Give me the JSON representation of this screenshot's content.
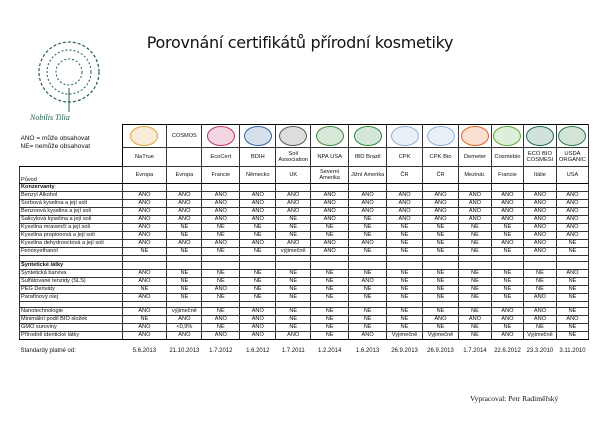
{
  "title": "Porovnání certifikátů přírodní kosmetiky",
  "logo": {
    "text": "Nobilis Tilia",
    "icon": "tree-logo",
    "color": "#1f5e4e"
  },
  "legend": [
    "ANO = může obsahovat",
    "NE= nemůže obsahovat"
  ],
  "certs": [
    {
      "name": "NaTrue",
      "origin": "Evropa",
      "icon": "natrue-logo",
      "color": "#e0a040",
      "date": "5.6.2013"
    },
    {
      "name": "",
      "logo_text": "COSMOS",
      "origin": "Evropa",
      "icon": "cosmos-logo",
      "color": "#ffffff",
      "date": "21.10.2013"
    },
    {
      "name": "EcoCert",
      "origin": "Francie",
      "icon": "ecocert-logo",
      "color": "#c0306a",
      "date": "1.7.2012"
    },
    {
      "name": "BDIH",
      "origin": "Německo",
      "icon": "bdih-logo",
      "color": "#3060a0",
      "date": "1.6.2012"
    },
    {
      "name": "Soil Association",
      "origin": "UK",
      "icon": "soil-association-logo",
      "color": "#555555",
      "date": "1.7.2011"
    },
    {
      "name": "NPA USA",
      "origin": "Severní Amerika",
      "icon": "npa-logo",
      "color": "#3a8a3a",
      "date": "1.2.2014"
    },
    {
      "name": "IBD Brazil",
      "origin": "Jižní Amerika",
      "icon": "ibd-logo",
      "color": "#2a8a3a",
      "date": "1.6.2013"
    },
    {
      "name": "CPK",
      "origin": "ČR",
      "icon": "cpk-logo",
      "color": "#8ab0d8",
      "date": "26.9.2013"
    },
    {
      "name": "CPK Bio",
      "origin": "ČR",
      "icon": "cpk-bio-logo",
      "color": "#8ab0d8",
      "date": "26.9.2013"
    },
    {
      "name": "Demeter",
      "origin": "Mezinár.",
      "icon": "demeter-logo",
      "color": "#e06020",
      "date": "1.7.2014"
    },
    {
      "name": "Cosmebio",
      "origin": "Francie",
      "icon": "cosmebio-logo",
      "color": "#5aaa3a",
      "date": "22.6.2012"
    },
    {
      "name": "ECO BIO COSMESI",
      "origin": "Itálie",
      "icon": "ecobio-cosmesi-logo",
      "color": "#1a6a4a",
      "date": "23.3.2010"
    },
    {
      "name": "USDA ORGANIC",
      "origin": "USA",
      "icon": "usda-organic-logo",
      "color": "#2a7a3a",
      "date": "3.11.2010"
    }
  ],
  "origin_label": "Původ",
  "sections": [
    {
      "title": "Konzervanty",
      "rows": [
        {
          "label": "Benzyl Alkohol",
          "values": [
            "ANO",
            "ANO",
            "ANO",
            "ANO",
            "ANO",
            "ANO",
            "ANO",
            "ANO",
            "ANO",
            "ANO",
            "ANO",
            "ANO",
            "ANO"
          ]
        },
        {
          "label": "Sorbová kyselina a její soli",
          "values": [
            "ANO",
            "ANO",
            "ANO",
            "ANO",
            "ANO",
            "ANO",
            "ANO",
            "ANO",
            "ANO",
            "ANO",
            "ANO",
            "ANO",
            "ANO"
          ]
        },
        {
          "label": "Benzoová kyselina a její soli",
          "values": [
            "ANO",
            "ANO",
            "ANO",
            "ANO",
            "ANO",
            "ANO",
            "ANO",
            "ANO",
            "ANO",
            "ANO",
            "ANO",
            "ANO",
            "ANO"
          ]
        },
        {
          "label": "Salicylová kyselina a její soli",
          "values": [
            "ANO",
            "ANO",
            "ANO",
            "ANO",
            "NE",
            "ANO",
            "NE",
            "ANO",
            "ANO",
            "ANO",
            "ANO",
            "ANO",
            "ANO"
          ]
        },
        {
          "label": "Kyselina mravenčí a její soli",
          "values": [
            "ANO",
            "NE",
            "NE",
            "NE",
            "NE",
            "NE",
            "NE",
            "NE",
            "NE",
            "NE",
            "NE",
            "ANO",
            "ANO"
          ]
        },
        {
          "label": "Kyselina propionová a její soli",
          "values": [
            "ANO",
            "NE",
            "NE",
            "NE",
            "NE",
            "NE",
            "NE",
            "NE",
            "NE",
            "NE",
            "NE",
            "ANO",
            "ANO"
          ]
        },
        {
          "label": "Kyselina dehydrooctová a její soli",
          "values": [
            "ANO",
            "ANO",
            "ANO",
            "ANO",
            "ANO",
            "ANO",
            "ANO",
            "NE",
            "NE",
            "NE",
            "ANO",
            "ANO",
            "NE"
          ]
        },
        {
          "label": "Fenoxyethanol",
          "values": [
            "NE",
            "NE",
            "NE",
            "NE",
            "výjimečně",
            "ANO",
            "NE",
            "NE",
            "NE",
            "NE",
            "NE",
            "ANO",
            "NE"
          ]
        }
      ]
    },
    {
      "title": "Syntetické látky",
      "rows": [
        {
          "label": "Syntetická barviva",
          "values": [
            "ANO",
            "NE",
            "NE",
            "NE",
            "NE",
            "NE",
            "NE",
            "NE",
            "NE",
            "NE",
            "NE",
            "NE",
            "ANO"
          ]
        },
        {
          "label": "Sulfátované tenzidy (SLS)",
          "values": [
            "ANO",
            "NE",
            "NE",
            "NE",
            "NE",
            "NE",
            "ANO",
            "NE",
            "NE",
            "NE",
            "NE",
            "NE",
            "NE"
          ]
        },
        {
          "label": "PEG Deriváty",
          "values": [
            "NE",
            "NE",
            "ANO",
            "NE",
            "NE",
            "NE",
            "NE",
            "NE",
            "NE",
            "NE",
            "NE",
            "NE",
            "NE"
          ]
        },
        {
          "label": "Parafínový olej",
          "values": [
            "ANO",
            "NE",
            "NE",
            "NE",
            "NE",
            "NE",
            "NE",
            "NE",
            "NE",
            "NE",
            "NE",
            "ANO",
            "NE"
          ]
        }
      ]
    },
    {
      "title": "",
      "rows": [
        {
          "label": "Nanotechnologie",
          "values": [
            "ANO",
            "výjimečně",
            "NE",
            "ANO",
            "NE",
            "NE",
            "NE",
            "NE",
            "NE",
            "NE",
            "ANO",
            "ANO",
            "NE"
          ]
        },
        {
          "label": "Minimální podíl BIO složek",
          "values": [
            "NE",
            "ANO",
            "ANO",
            "ANO",
            "NE",
            "NE",
            "NE",
            "NE",
            "ANO",
            "ANO",
            "ANO",
            "ANO",
            "ANO"
          ]
        },
        {
          "label": "GMO suroviny",
          "values": [
            "ANO",
            "<0,9%",
            "NE",
            "ANO",
            "NE",
            "NE",
            "NE",
            "NE",
            "NE",
            "NE",
            "NE",
            "NE",
            "NE"
          ]
        },
        {
          "label": "Přírodně identické látky",
          "values": [
            "ANO",
            "ANO",
            "ANO",
            "ANO",
            "ANO",
            "NE",
            "ANO",
            "Vyjimečně",
            "Vyjimečně",
            "NE",
            "ANO",
            "Vyjimečně",
            "NE"
          ]
        }
      ]
    }
  ],
  "dates_label": "Standardy platné od:",
  "author": "Vypracoval: Petr Radiměřský"
}
